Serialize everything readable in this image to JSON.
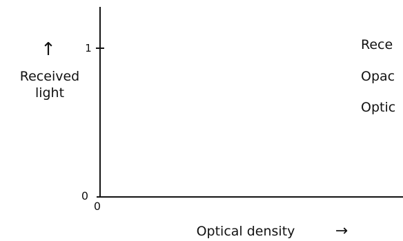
{
  "chart_data": {
    "type": "line",
    "title": "",
    "xlabel": "Optical density",
    "xlabel_arrow": "→",
    "ylabel_lines": [
      "Received",
      "light"
    ],
    "ylabel_arrow": "↑",
    "x_ticks": [
      {
        "value": 0,
        "label": "0"
      }
    ],
    "y_ticks": [
      {
        "value": 0,
        "label": "0"
      },
      {
        "value": 1,
        "label": "1"
      }
    ],
    "ylim": [
      0,
      1.2
    ],
    "grid": false,
    "legend_placement": "right",
    "legend": [
      "Rece",
      "Opac",
      "Optic"
    ],
    "series": []
  },
  "colors": {
    "ink": "#111111",
    "background": "#ffffff"
  }
}
